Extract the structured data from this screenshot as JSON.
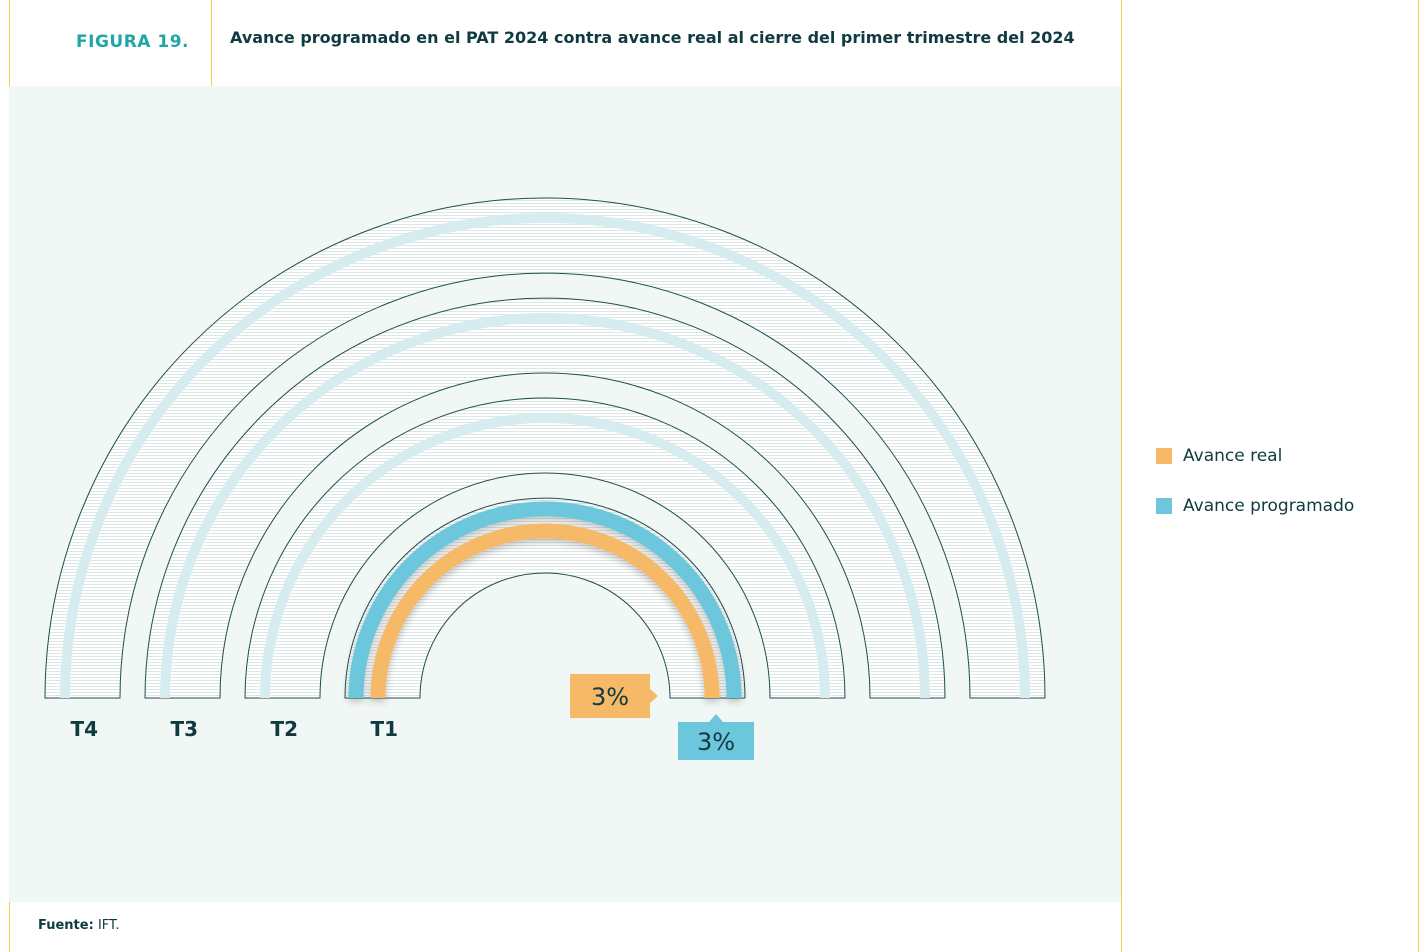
{
  "figure": {
    "label": "FIGURA 19.",
    "title": "Avance programado en el PAT 2024 contra avance real al cierre del primer trimestre del 2024"
  },
  "source": {
    "prefix": "Fuente:",
    "text": "IFT."
  },
  "colors": {
    "real": "#f6b967",
    "programado": "#6cc6dc",
    "track": "#d7ecef",
    "outline": "#1f4e52",
    "frame": "#f3cf3f",
    "panel": "#f1f7f5"
  },
  "chart_data": {
    "type": "radial-bar",
    "rings": [
      "T4",
      "T3",
      "T2",
      "T1"
    ],
    "series": [
      {
        "name": "Avance real",
        "values": [
          null,
          null,
          null,
          100
        ]
      },
      {
        "name": "Avance programado",
        "values": [
          null,
          null,
          null,
          100
        ]
      }
    ],
    "data_labels": {
      "real": "3%",
      "programado": "3%"
    },
    "legend_position": "right"
  }
}
